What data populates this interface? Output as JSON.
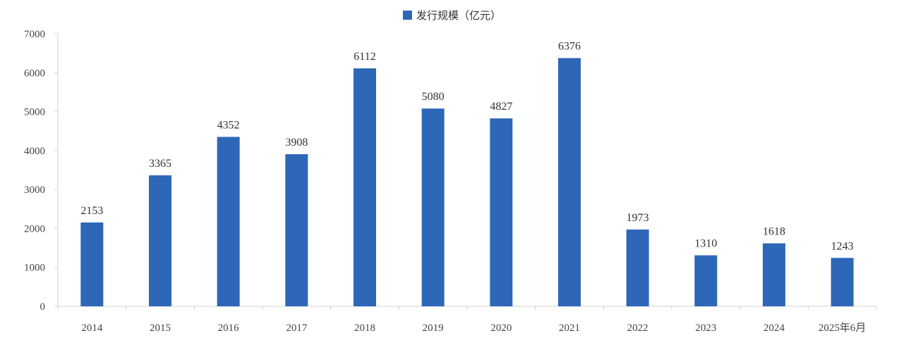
{
  "chart_data": {
    "type": "bar",
    "title": "",
    "xlabel": "",
    "ylabel": "",
    "categories": [
      "2014",
      "2015",
      "2016",
      "2017",
      "2018",
      "2019",
      "2020",
      "2021",
      "2022",
      "2023",
      "2024",
      "2025年6月"
    ],
    "series": [
      {
        "name": "发行规模（亿元）",
        "values": [
          2153,
          3365,
          4352,
          3908,
          6112,
          5080,
          4827,
          6376,
          1973,
          1310,
          1618,
          1243
        ]
      }
    ],
    "ylim": [
      0,
      7000
    ],
    "yticks": [
      0,
      1000,
      2000,
      3000,
      4000,
      5000,
      6000,
      7000
    ],
    "data_labels": [
      "2153",
      "3365",
      "4352",
      "3908",
      "6112",
      "5080",
      "4827",
      "6376",
      "1973",
      "1310",
      "1618",
      "1243"
    ],
    "legend_position": "top-center",
    "grid": false,
    "bar_color": "#2e67b8"
  }
}
